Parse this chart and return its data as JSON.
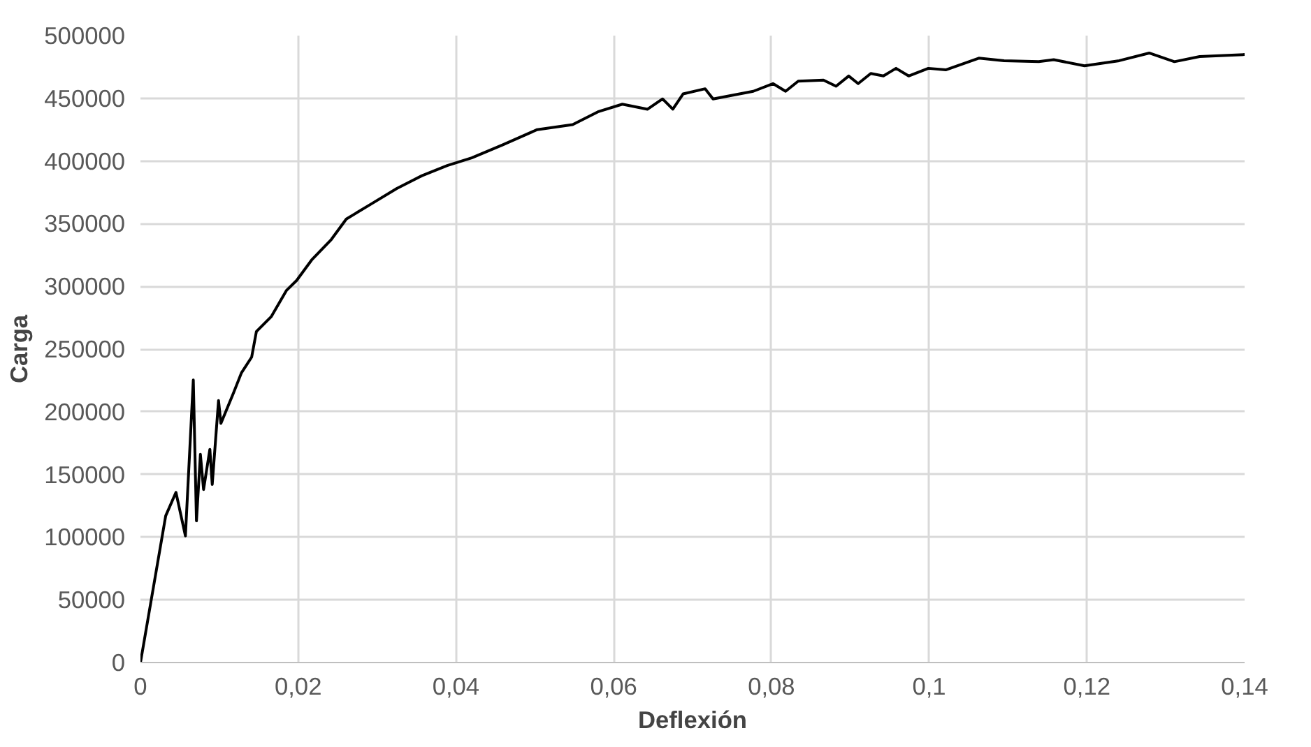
{
  "chart_data": {
    "type": "line",
    "xlabel": "Deflexión",
    "ylabel": "Carga",
    "xlim": [
      0,
      0.14
    ],
    "ylim": [
      0,
      500000
    ],
    "xticks": [
      0,
      {
        "value": 0.02,
        "label": "0,02"
      },
      {
        "value": 0.04,
        "label": "0,04"
      },
      {
        "value": 0.06,
        "label": "0,06"
      },
      {
        "value": 0.08,
        "label": "0,08"
      },
      {
        "value": 0.1,
        "label": "0,1"
      },
      {
        "value": 0.12,
        "label": "0,12"
      },
      {
        "value": 0.14,
        "label": "0,14"
      }
    ],
    "yticks": [
      0,
      50000,
      100000,
      150000,
      200000,
      250000,
      300000,
      350000,
      400000,
      450000,
      500000
    ],
    "grid": true,
    "marker": "none",
    "line_style": "solid",
    "series": [
      {
        "color": "#000000",
        "x": [
          0,
          0.0032,
          0.0045,
          0.0057,
          0.0067,
          0.0071,
          0.0076,
          0.008,
          0.0088,
          0.0091,
          0.0099,
          0.0102,
          0.0118,
          0.0128,
          0.0141,
          0.0147,
          0.0166,
          0.0185,
          0.0198,
          0.0217,
          0.0242,
          0.0261,
          0.0293,
          0.0325,
          0.0357,
          0.0389,
          0.042,
          0.0459,
          0.0503,
          0.0548,
          0.058,
          0.0611,
          0.0643,
          0.0662,
          0.0675,
          0.0688,
          0.0716,
          0.0726,
          0.0777,
          0.0802,
          0.0818,
          0.0834,
          0.0866,
          0.0882,
          0.0898,
          0.091,
          0.0926,
          0.0942,
          0.0958,
          0.0974,
          0.0999,
          0.1021,
          0.1063,
          0.1095,
          0.1139,
          0.1158,
          0.1197,
          0.1241,
          0.1279,
          0.1311,
          0.1343,
          0.14
        ],
        "values": [
          0,
          117000,
          135700,
          101000,
          225300,
          113000,
          166000,
          138000,
          170000,
          142000,
          209000,
          190700,
          215000,
          231000,
          243600,
          264000,
          276000,
          296700,
          304700,
          321000,
          337400,
          353700,
          365900,
          378100,
          388300,
          396400,
          402500,
          412800,
          425000,
          429000,
          439200,
          445300,
          441300,
          449500,
          441300,
          453500,
          457600,
          449500,
          455600,
          461700,
          455600,
          463700,
          464500,
          459600,
          467800,
          461700,
          469800,
          467800,
          473900,
          467800,
          473900,
          472700,
          482000,
          480000,
          479200,
          480800,
          475900,
          480000,
          486100,
          479200,
          483300,
          484900
        ]
      }
    ]
  }
}
